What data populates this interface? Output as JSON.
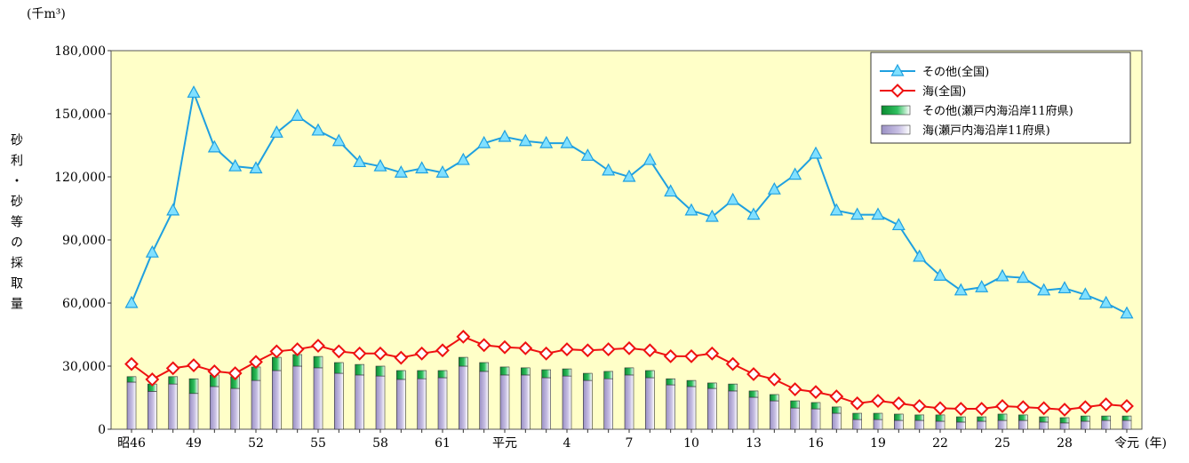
{
  "chart_data": {
    "type": "combo",
    "unit": "(千m³)",
    "y_label": "砂利・砂等の採取量",
    "x_unit": "(年)",
    "categories": [
      "昭46",
      null,
      null,
      "49",
      null,
      null,
      "52",
      null,
      null,
      "55",
      null,
      null,
      "58",
      null,
      null,
      "61",
      null,
      null,
      "平元",
      null,
      null,
      "4",
      null,
      null,
      "7",
      null,
      null,
      "10",
      null,
      null,
      "13",
      null,
      null,
      "16",
      null,
      null,
      "19",
      null,
      null,
      "22",
      null,
      null,
      "25",
      null,
      null,
      "28",
      null,
      null,
      "令元"
    ],
    "ylim": [
      0,
      180000
    ],
    "yticks": [
      0,
      {
        "value": 30000,
        "label": "30,000"
      },
      {
        "value": 60000,
        "label": "60,000"
      },
      {
        "value": 90000,
        "label": "90,000"
      },
      {
        "value": 120000,
        "label": "120,000"
      },
      {
        "value": 150000,
        "label": "150,000"
      },
      {
        "value": 180000,
        "label": "180,000"
      }
    ],
    "series": [
      {
        "name": "その他(全国)",
        "type": "line",
        "marker": "triangle",
        "color": "#1fa0e0",
        "values": [
          60000,
          84000,
          104000,
          160000,
          134000,
          125000,
          124000,
          141000,
          149000,
          142000,
          137000,
          127000,
          125000,
          122000,
          124000,
          122000,
          128000,
          136000,
          139000,
          137000,
          136000,
          136000,
          130000,
          123000,
          120000,
          128000,
          113000,
          104000,
          101000,
          109000,
          102000,
          114000,
          121000,
          131000,
          104000,
          102000,
          102000,
          97000,
          82000,
          73000,
          66000,
          67500,
          72700,
          72000,
          66000,
          67000,
          64000,
          60000,
          55000
        ]
      },
      {
        "name": "海(全国)",
        "type": "line",
        "marker": "diamond",
        "color": "#ee1111",
        "values": [
          31000,
          23700,
          29000,
          30400,
          27500,
          26600,
          32000,
          37000,
          38000,
          39700,
          37000,
          36000,
          36000,
          34000,
          36000,
          37500,
          44000,
          40000,
          39000,
          38500,
          36000,
          38000,
          37500,
          38000,
          38500,
          37500,
          34700,
          34700,
          36000,
          31000,
          26200,
          23700,
          19000,
          17700,
          15600,
          12300,
          13500,
          12300,
          11000,
          10000,
          9700,
          9700,
          11000,
          10500,
          10000,
          9300,
          10500,
          11800,
          11000
        ]
      },
      {
        "name": "その他(瀬戸内海沿岸11府県)",
        "type": "bar",
        "color": "#10a040",
        "values": [
          2600,
          3500,
          3500,
          7000,
          5500,
          5600,
          6400,
          6300,
          5500,
          5400,
          5100,
          5000,
          4700,
          4200,
          3900,
          3400,
          4200,
          4200,
          3800,
          3400,
          3800,
          3400,
          3400,
          3500,
          3400,
          3400,
          2900,
          2900,
          2600,
          3300,
          3000,
          3000,
          3400,
          3000,
          3000,
          3000,
          3000,
          3000,
          2600,
          3000,
          2500,
          2100,
          3000,
          2600,
          2500,
          2500,
          2500,
          2100,
          2100
        ]
      },
      {
        "name": "海(瀬戸内海沿岸11府県)",
        "type": "bar",
        "color": "#b8aed8",
        "values": [
          22400,
          18000,
          21500,
          17000,
          20300,
          19400,
          23200,
          27900,
          30000,
          29200,
          26600,
          25800,
          25300,
          23700,
          24000,
          24500,
          30000,
          27500,
          25800,
          25800,
          24500,
          25300,
          23200,
          24000,
          25800,
          24500,
          21100,
          20300,
          19400,
          18200,
          15200,
          13500,
          10100,
          9700,
          7600,
          4600,
          4600,
          4200,
          4200,
          3800,
          3400,
          3800,
          4200,
          4200,
          3400,
          3000,
          3800,
          4200,
          4200
        ]
      }
    ]
  }
}
